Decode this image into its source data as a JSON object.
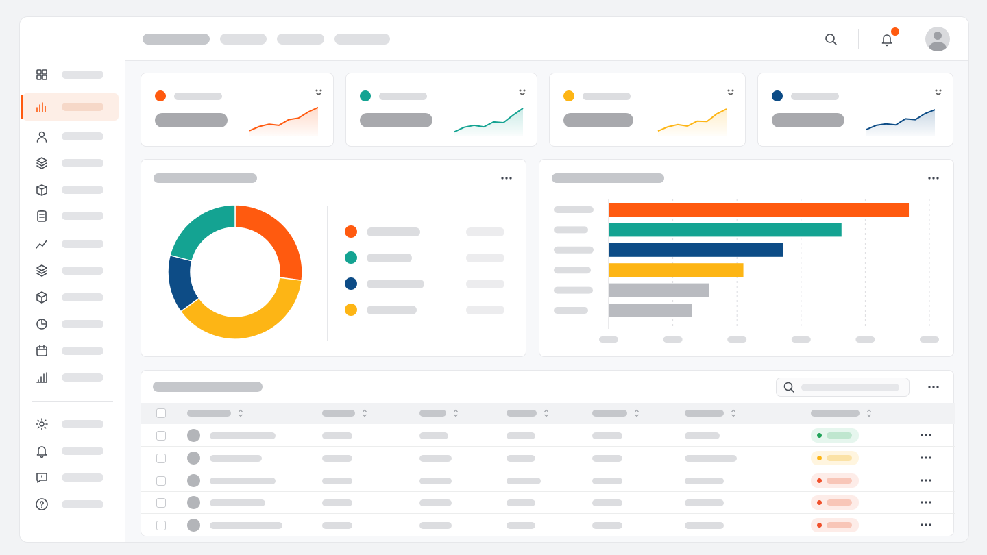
{
  "chart_data": [
    {
      "type": "line",
      "categories": [
        null,
        null,
        null,
        null,
        null,
        null,
        null,
        null
      ],
      "values": [
        1.5,
        2.6,
        3.2,
        2.9,
        4.4,
        4.8,
        6.4,
        7.6
      ],
      "color": "#ff5a0f",
      "ylim": [
        0,
        9
      ]
    },
    {
      "type": "line",
      "categories": [
        null,
        null,
        null,
        null,
        null,
        null,
        null,
        null
      ],
      "values": [
        1.2,
        2.4,
        2.9,
        2.5,
        3.8,
        3.6,
        5.6,
        7.4
      ],
      "color": "#14a392",
      "ylim": [
        0,
        9
      ]
    },
    {
      "type": "line",
      "categories": [
        null,
        null,
        null,
        null,
        null,
        null,
        null,
        null
      ],
      "values": [
        1.4,
        2.5,
        3.1,
        2.7,
        4.0,
        3.9,
        5.9,
        7.2
      ],
      "color": "#fdb515",
      "ylim": [
        0,
        9
      ]
    },
    {
      "type": "line",
      "categories": [
        null,
        null,
        null,
        null,
        null,
        null,
        null,
        null
      ],
      "values": [
        1.8,
        2.9,
        3.3,
        3.0,
        4.6,
        4.4,
        6.0,
        7.0
      ],
      "color": "#0d4c86",
      "ylim": [
        0,
        9
      ]
    },
    {
      "type": "pie",
      "donut": true,
      "categories": [
        null,
        null,
        null,
        null
      ],
      "values": [
        27,
        38,
        14,
        21
      ],
      "colors": [
        "#ff5a0f",
        "#fdb515",
        "#0d4c86",
        "#14a392"
      ],
      "legend_colors": [
        "#ff5a0f",
        "#14a392",
        "#0d4c86",
        "#fdb515"
      ]
    },
    {
      "type": "bar",
      "orientation": "horizontal",
      "categories": [
        null,
        null,
        null,
        null,
        null,
        null
      ],
      "values": [
        4.68,
        3.63,
        2.72,
        2.1,
        1.56,
        1.3
      ],
      "colors": [
        "#ff5a0f",
        "#14a392",
        "#0d4c86",
        "#fdb515",
        "#b9bbc0",
        "#b9bbc0"
      ],
      "xlim": [
        0,
        5
      ],
      "xticks": [
        0,
        1,
        2,
        3,
        4,
        5
      ],
      "grid": true
    }
  ]
}
